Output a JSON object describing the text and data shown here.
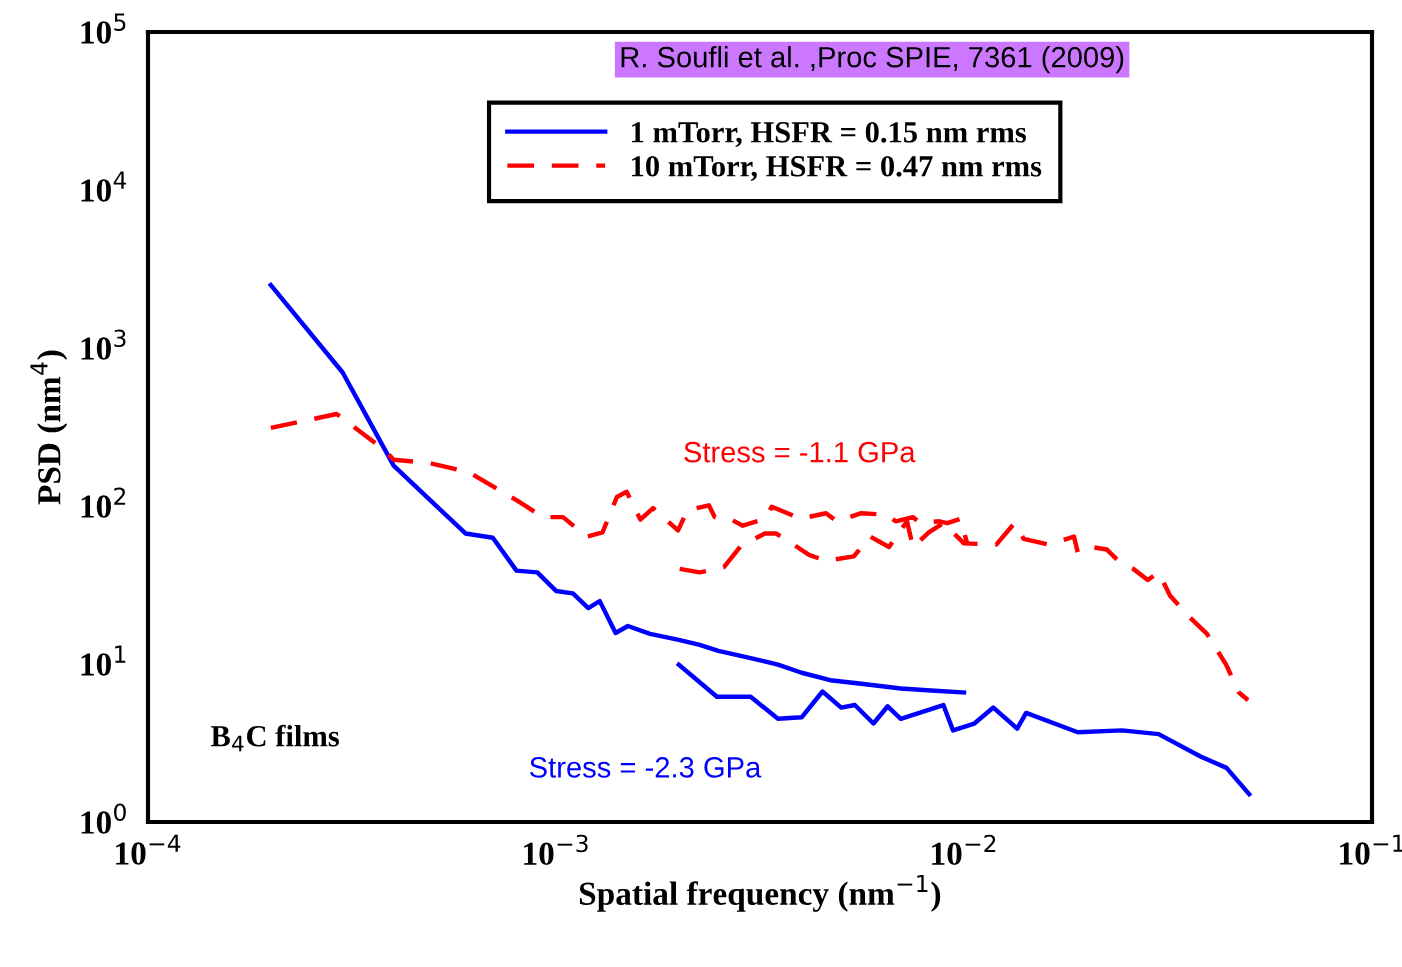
{
  "chart_data": {
    "type": "line",
    "log": "xy",
    "grid": false,
    "legend": "top",
    "xlabel": "Spatial frequency (nm$^{−1}$)",
    "ylabel": "PSD (nm$^{4}$)",
    "xlim": [
      0.0001,
      0.1
    ],
    "ylim": [
      1,
      100000
    ],
    "xticks": [
      {
        "value": 0.0001,
        "label": "10$^{−4}$"
      },
      {
        "value": 0.001,
        "label": "10$^{−3}$"
      },
      {
        "value": 0.01,
        "label": "10$^{−2}$"
      },
      {
        "value": 0.1,
        "label": "10$^{−1}$"
      }
    ],
    "yticks": [
      {
        "value": 1,
        "label": "10$^{0}$"
      },
      {
        "value": 10,
        "label": "10$^{1}$"
      },
      {
        "value": 100,
        "label": "10$^{2}$"
      },
      {
        "value": 1000,
        "label": "10$^{3}$"
      },
      {
        "value": 10000,
        "label": "10$^{4}$"
      },
      {
        "value": 100000,
        "label": "10$^{5}$"
      }
    ],
    "annotations": [
      "R. Soufli et al. ,Proc SPIE, 7361 (2009)",
      "Stress = -1.1 GPa",
      "Stress = -2.3 GPa",
      "B$_{4}$C films"
    ],
    "series": [
      {
        "name": "1 mTorr, HSFR = 0.15 nm rms",
        "color": "#0000ff",
        "line_style": "solid",
        "x": [
          0.0002,
          0.0003,
          0.0004,
          0.0006,
          0.0007,
          0.0008,
          0.0009,
          0.001,
          0.0011,
          0.0012,
          0.00128,
          0.0014,
          0.0015,
          0.0017,
          0.002,
          0.00225,
          0.0025,
          0.003,
          0.0035,
          0.004,
          0.0047,
          0.0056,
          0.007,
          0.0083,
          0.01
        ],
        "values": [
          2500,
          700,
          180,
          67,
          63,
          39,
          38,
          29,
          28,
          22.6,
          25,
          15.7,
          17.4,
          15.5,
          14.2,
          13.2,
          12.1,
          10.9,
          9.9,
          8.8,
          7.9,
          7.5,
          7.0,
          6.8,
          6.6
        ]
      },
      {
        "color": "#0000ff",
        "line_style": "solid",
        "x": [
          0.002,
          0.00248,
          0.003,
          0.0035,
          0.004,
          0.0045,
          0.005,
          0.0054,
          0.006,
          0.0065,
          0.007,
          0.0089,
          0.0094,
          0.0106,
          0.0118,
          0.0135,
          0.0142,
          0.019,
          0.0244,
          0.03,
          0.038,
          0.044,
          0.05
        ],
        "values": [
          9.9,
          6.2,
          6.2,
          4.5,
          4.6,
          6.7,
          5.3,
          5.5,
          4.2,
          5.4,
          4.5,
          5.5,
          3.8,
          4.2,
          5.3,
          3.9,
          4.9,
          3.7,
          3.8,
          3.6,
          2.6,
          2.2,
          1.5
        ]
      },
      {
        "name": "10 mTorr, HSFR = 0.47 nm rms",
        "color": "#ff0000",
        "line_style": "dashed",
        "x": [
          0.0002,
          0.00029,
          0.00038,
          0.0004,
          0.00049,
          0.00061,
          0.0008,
          0.00093,
          0.00104,
          0.00119,
          0.0013,
          0.00141,
          0.00149,
          0.00161,
          0.00173,
          0.00199,
          0.0021,
          0.00237,
          0.00245,
          0.00267,
          0.00287,
          0.00325,
          0.00338,
          0.00377,
          0.00396,
          0.00459,
          0.00488,
          0.0056,
          0.00647,
          0.0068,
          0.0075,
          0.0078,
          0.0087,
          0.0091,
          0.0098,
          0.0102
        ],
        "values": [
          312,
          382,
          226,
          196,
          187,
          164,
          109,
          85,
          85,
          64,
          68,
          114,
          123,
          82,
          97,
          70,
          94,
          101,
          85,
          83,
          75,
          83,
          99,
          88,
          83,
          90,
          80,
          90,
          88,
          80,
          85,
          78,
          80,
          78,
          83,
          57
        ]
      },
      {
        "color": "#ff0000",
        "line_style": "dashed",
        "x": [
          0.00201,
          0.00225,
          0.00258,
          0.00284,
          0.00325,
          0.00346,
          0.00364,
          0.00417,
          0.00459,
          0.00537,
          0.00589,
          0.00655,
          0.00725,
          0.0075,
          0.0082,
          0.0089,
          0.01,
          0.012,
          0.0133,
          0.014,
          0.0161,
          0.0186,
          0.019,
          0.0205,
          0.0224,
          0.0241,
          0.026,
          0.0282,
          0.03,
          0.032,
          0.0356,
          0.0394,
          0.0439,
          0.0472,
          0.0497
        ],
        "values": [
          40,
          38,
          41,
          56,
          67,
          67,
          62,
          49,
          45,
          48,
          64,
          55,
          80,
          55,
          68,
          78,
          58,
          57,
          78,
          62,
          57,
          64,
          51,
          55,
          53,
          44,
          40,
          34,
          38,
          27,
          20,
          15.5,
          9.9,
          6.6,
          5.9
        ]
      }
    ]
  }
}
